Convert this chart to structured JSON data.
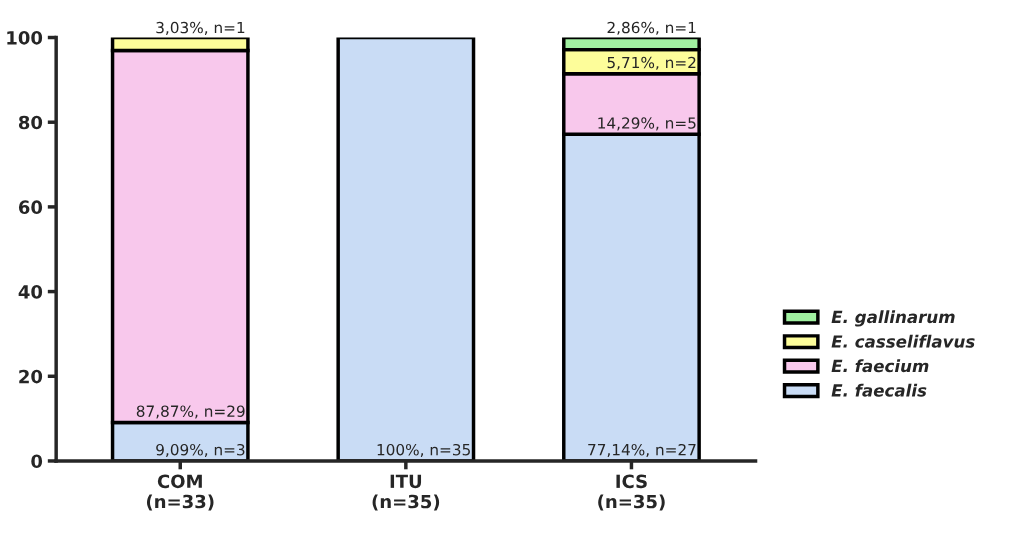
{
  "chart_data": {
    "type": "bar",
    "stacked": true,
    "categories": [
      "COM\n(n=33)",
      "ITU\n(n=35)",
      "ICS\n(n=35)"
    ],
    "series": [
      {
        "name": "E. faecalis",
        "color": "#c9dcf5",
        "values": [
          9.09,
          100,
          77.14
        ],
        "value_labels": [
          "9,09%, n=3",
          "100%, n=35",
          "77,14%, n=27"
        ]
      },
      {
        "name": "E. faecium",
        "color": "#f8c8ec",
        "values": [
          87.87,
          null,
          14.29
        ],
        "value_labels": [
          "87,87%, n=29",
          null,
          "14,29%, n=5"
        ]
      },
      {
        "name": "E. casseliflavus",
        "color": "#fdfd9a",
        "values": [
          3.03,
          null,
          5.71
        ],
        "value_labels": [
          "3,03%, n=1",
          null,
          "5,71%, n=2"
        ]
      },
      {
        "name": "E. gallinarum",
        "color": "#a0f0a0",
        "values": [
          null,
          null,
          2.86
        ],
        "value_labels": [
          null,
          null,
          "2,86%, n=1"
        ]
      }
    ],
    "ylim": [
      0,
      100
    ],
    "yticks": [
      0,
      20,
      40,
      60,
      80,
      100
    ],
    "grid": false,
    "legend": "right"
  }
}
